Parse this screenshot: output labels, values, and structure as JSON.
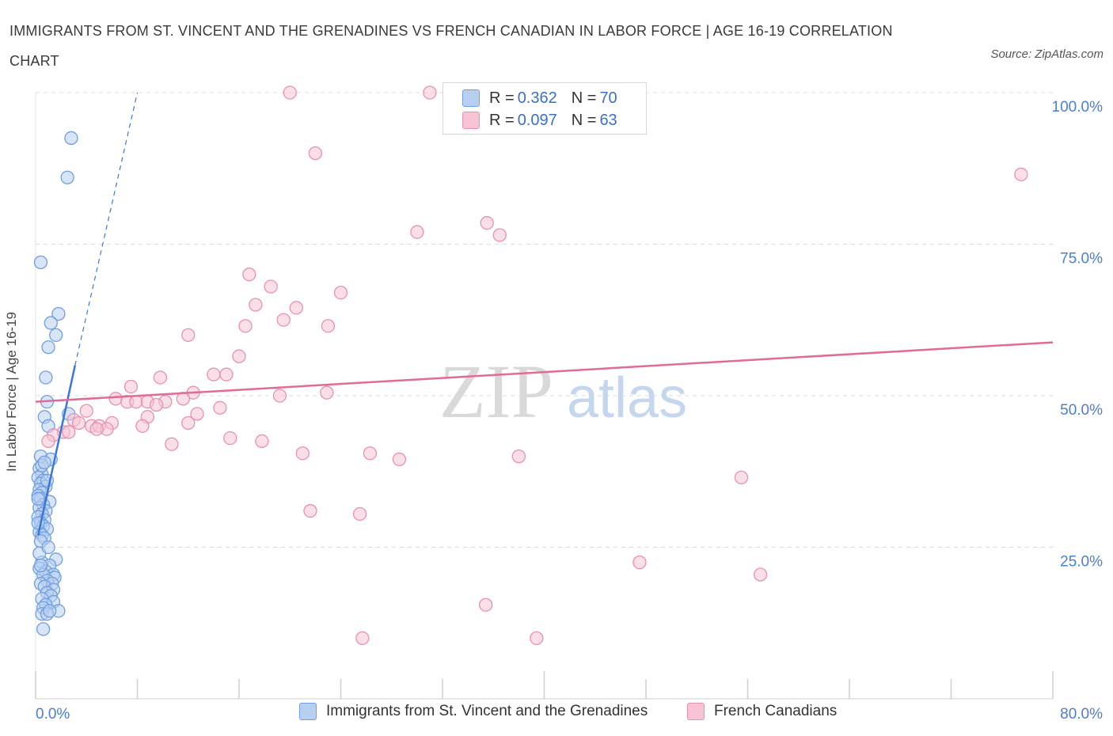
{
  "title": "IMMIGRANTS FROM ST. VINCENT AND THE GRENADINES VS FRENCH CANADIAN IN LABOR FORCE | AGE 16-19 CORRELATION CHART",
  "source": "Source: ZipAtlas.com",
  "watermark": {
    "zip": "ZIP",
    "atlas": "atlas"
  },
  "legend_top": [
    {
      "r_label": "R =",
      "r_value": "0.362",
      "n_label": "N =",
      "n_value": "70"
    },
    {
      "r_label": "R =",
      "r_value": "0.097",
      "n_label": "N =",
      "n_value": "63"
    }
  ],
  "colors": {
    "blue": "#3a78d8",
    "blue_fill": "#b8d0f0",
    "pink": "#e26a98",
    "pink_fill": "#f6c4d4",
    "tick": "#4a7fd4"
  },
  "chart_data": {
    "type": "scatter",
    "title": "IMMIGRANTS FROM ST. VINCENT AND THE GRENADINES VS FRENCH CANADIAN IN LABOR FORCE | AGE 16-19 CORRELATION CHART",
    "ylabel": "In Labor Force | Age 16-19",
    "xlim": [
      0,
      80
    ],
    "ylim": [
      0,
      100
    ],
    "x_tick_labels": [
      "0.0%",
      "80.0%"
    ],
    "y_ticks": [
      25,
      50,
      75,
      100
    ],
    "y_tick_labels": [
      "25.0%",
      "50.0%",
      "75.0%",
      "100.0%"
    ],
    "grid": true,
    "legend_placement": "top-center and bottom",
    "series": [
      {
        "name": "Immigrants from St. Vincent and the Grenadines",
        "color": "#3a78d8",
        "points": [
          [
            2.8,
            92.5
          ],
          [
            2.5,
            86
          ],
          [
            0.4,
            72
          ],
          [
            1.8,
            63.5
          ],
          [
            1.2,
            62
          ],
          [
            1.6,
            60
          ],
          [
            1.0,
            58
          ],
          [
            0.8,
            53
          ],
          [
            0.9,
            49
          ],
          [
            2.6,
            47
          ],
          [
            0.7,
            46.5
          ],
          [
            1.0,
            45
          ],
          [
            0.4,
            40
          ],
          [
            1.2,
            39.5
          ],
          [
            0.3,
            38
          ],
          [
            0.5,
            37
          ],
          [
            0.2,
            36.5
          ],
          [
            0.6,
            36
          ],
          [
            0.4,
            35.5
          ],
          [
            0.8,
            35
          ],
          [
            0.3,
            34.5
          ],
          [
            0.5,
            34
          ],
          [
            0.2,
            33.5
          ],
          [
            0.4,
            33
          ],
          [
            1.1,
            32.5
          ],
          [
            0.6,
            32
          ],
          [
            0.3,
            31.5
          ],
          [
            0.8,
            31
          ],
          [
            0.5,
            30.5
          ],
          [
            0.2,
            30
          ],
          [
            0.7,
            29.5
          ],
          [
            0.4,
            29
          ],
          [
            0.6,
            28.5
          ],
          [
            0.9,
            28
          ],
          [
            0.3,
            27.5
          ],
          [
            0.5,
            27
          ],
          [
            0.7,
            26.5
          ],
          [
            0.4,
            26
          ],
          [
            1.6,
            23
          ],
          [
            0.5,
            22.5
          ],
          [
            1.1,
            22
          ],
          [
            0.3,
            21.5
          ],
          [
            0.8,
            21
          ],
          [
            1.4,
            20.5
          ],
          [
            0.6,
            20.5
          ],
          [
            1.5,
            20
          ],
          [
            0.9,
            19.5
          ],
          [
            1.3,
            19
          ],
          [
            0.4,
            19
          ],
          [
            0.7,
            18.5
          ],
          [
            1.4,
            18
          ],
          [
            0.9,
            17.5
          ],
          [
            1.2,
            17
          ],
          [
            0.5,
            16.5
          ],
          [
            1.4,
            16
          ],
          [
            0.8,
            15.5
          ],
          [
            0.6,
            15
          ],
          [
            1.8,
            14.5
          ],
          [
            0.5,
            14
          ],
          [
            0.9,
            14
          ],
          [
            1.1,
            14.5
          ],
          [
            0.6,
            11.5
          ],
          [
            0.3,
            24
          ],
          [
            0.2,
            33
          ],
          [
            0.5,
            38.5
          ],
          [
            0.9,
            36
          ],
          [
            0.2,
            29
          ],
          [
            0.4,
            22
          ],
          [
            1.0,
            25
          ],
          [
            0.7,
            39
          ]
        ]
      },
      {
        "name": "French Canadians",
        "color": "#e26a98",
        "points": [
          [
            20.0,
            100
          ],
          [
            31.0,
            100
          ],
          [
            22.0,
            90
          ],
          [
            77.5,
            86.5
          ],
          [
            30.0,
            77
          ],
          [
            35.5,
            78.5
          ],
          [
            36.5,
            76.5
          ],
          [
            16.8,
            70
          ],
          [
            18.5,
            68
          ],
          [
            24.0,
            67
          ],
          [
            17.3,
            65
          ],
          [
            20.5,
            64.5
          ],
          [
            19.5,
            62.5
          ],
          [
            16.5,
            61.5
          ],
          [
            23.0,
            61.5
          ],
          [
            12.0,
            60
          ],
          [
            16.0,
            56.5
          ],
          [
            14.0,
            53.5
          ],
          [
            15.0,
            53.5
          ],
          [
            9.8,
            53
          ],
          [
            7.5,
            51.5
          ],
          [
            12.4,
            50.5
          ],
          [
            19.2,
            50
          ],
          [
            22.9,
            50.5
          ],
          [
            6.3,
            49.5
          ],
          [
            7.2,
            49
          ],
          [
            7.9,
            49
          ],
          [
            8.8,
            49
          ],
          [
            11.6,
            49.5
          ],
          [
            10.2,
            49
          ],
          [
            9.5,
            48.5
          ],
          [
            14.5,
            48
          ],
          [
            4.0,
            47.5
          ],
          [
            12.7,
            47
          ],
          [
            8.8,
            46.5
          ],
          [
            3.0,
            46
          ],
          [
            3.4,
            45.5
          ],
          [
            6.0,
            45.5
          ],
          [
            4.4,
            45
          ],
          [
            5.0,
            45
          ],
          [
            12.0,
            45.5
          ],
          [
            5.6,
            44.5
          ],
          [
            8.4,
            45
          ],
          [
            4.8,
            44.5
          ],
          [
            2.2,
            44
          ],
          [
            2.6,
            44
          ],
          [
            1.4,
            43.5
          ],
          [
            15.3,
            43
          ],
          [
            17.8,
            42.5
          ],
          [
            10.7,
            42
          ],
          [
            21.0,
            40.5
          ],
          [
            26.3,
            40.5
          ],
          [
            28.6,
            39.5
          ],
          [
            38.0,
            40
          ],
          [
            55.5,
            36.5
          ],
          [
            21.6,
            31
          ],
          [
            25.5,
            30.5
          ],
          [
            1.0,
            42.5
          ],
          [
            47.5,
            22.5
          ],
          [
            57.0,
            20.5
          ],
          [
            35.4,
            15.5
          ],
          [
            25.7,
            10
          ],
          [
            39.4,
            10
          ]
        ]
      }
    ],
    "trend_lines": [
      {
        "series": "Immigrants from St. Vincent and the Grenadines",
        "solid": [
          [
            0.2,
            27
          ],
          [
            3.1,
            55
          ]
        ],
        "dashed": [
          [
            3.1,
            55
          ],
          [
            8.0,
            100
          ]
        ]
      },
      {
        "series": "French Canadians",
        "solid": [
          [
            0,
            49
          ],
          [
            80,
            58.8
          ]
        ]
      }
    ]
  }
}
